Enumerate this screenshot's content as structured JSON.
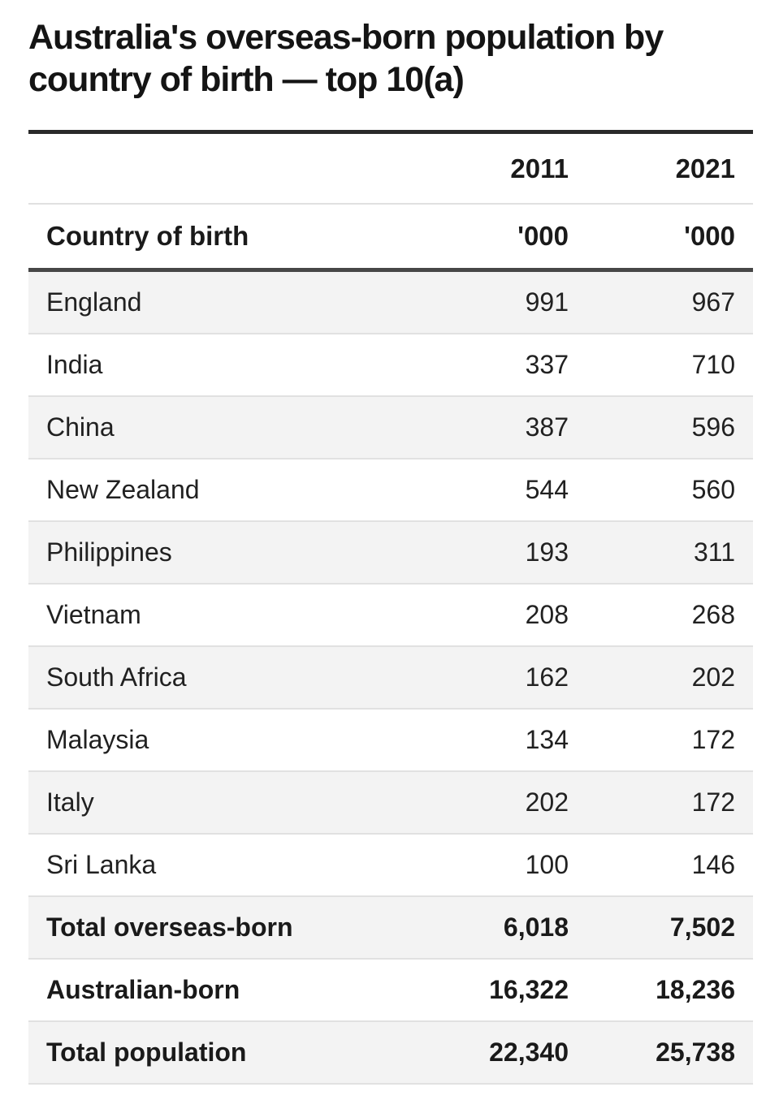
{
  "title": "Australia's overseas-born population by country of birth — top 10(a)",
  "header": {
    "year_2011": "2011",
    "year_2021": "2021",
    "country_label": "Country of birth",
    "unit_2011": "'000",
    "unit_2021": "'000"
  },
  "rows": [
    {
      "label": "England",
      "v2011": "991",
      "v2021": "967"
    },
    {
      "label": "India",
      "v2011": "337",
      "v2021": "710"
    },
    {
      "label": "China",
      "v2011": "387",
      "v2021": "596"
    },
    {
      "label": "New Zealand",
      "v2011": "544",
      "v2021": "560"
    },
    {
      "label": "Philippines",
      "v2011": "193",
      "v2021": "311"
    },
    {
      "label": "Vietnam",
      "v2011": "208",
      "v2021": "268"
    },
    {
      "label": "South Africa",
      "v2011": "162",
      "v2021": "202"
    },
    {
      "label": "Malaysia",
      "v2011": "134",
      "v2021": "172"
    },
    {
      "label": "Italy",
      "v2011": "202",
      "v2021": "172"
    },
    {
      "label": "Sri Lanka",
      "v2011": "100",
      "v2021": "146"
    },
    {
      "label": "Total overseas-born",
      "v2011": "6,018",
      "v2021": "7,502"
    },
    {
      "label": "Australian-born",
      "v2011": "16,322",
      "v2021": "18,236"
    },
    {
      "label": "Total population",
      "v2011": "22,340",
      "v2021": "25,738"
    }
  ],
  "colors": {
    "heavy_rule_top": "#2a2a2a",
    "heavy_rule_header": "#474747",
    "thin_rule": "#e1e1e1",
    "shaded_row_bg": "#f3f3f3",
    "text": "#1f1f1f"
  },
  "chart_data": {
    "type": "table",
    "title": "Australia's overseas-born population by country of birth — top 10(a)",
    "columns": [
      "Country of birth",
      "2011 ('000)",
      "2021 ('000)"
    ],
    "rows": [
      [
        "England",
        991,
        967
      ],
      [
        "India",
        337,
        710
      ],
      [
        "China",
        387,
        596
      ],
      [
        "New Zealand",
        544,
        560
      ],
      [
        "Philippines",
        193,
        311
      ],
      [
        "Vietnam",
        208,
        268
      ],
      [
        "South Africa",
        162,
        202
      ],
      [
        "Malaysia",
        134,
        172
      ],
      [
        "Italy",
        202,
        172
      ],
      [
        "Sri Lanka",
        100,
        146
      ],
      [
        "Total overseas-born",
        6018,
        7502
      ],
      [
        "Australian-born",
        16322,
        18236
      ],
      [
        "Total population",
        22340,
        25738
      ]
    ],
    "units": "'000",
    "layout": "alternating row shading, numeric columns right-aligned, totals in bold"
  }
}
